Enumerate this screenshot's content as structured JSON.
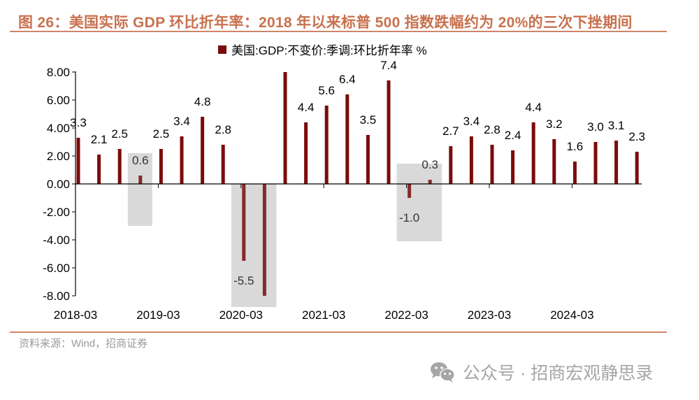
{
  "header": {
    "title": "图 26：美国实际 GDP 环比折年率：2018 年以来标普 500 指数跌幅约为 20%的三次下挫期间"
  },
  "footer": {
    "source": "资料来源：Wind，招商证券",
    "watermark": "公众号 · 招商宏观静思录",
    "watermark_icon": "wechat-icon"
  },
  "colors": {
    "bar": "#7b0b0b",
    "bar_in_shade": "#862a2a",
    "shade": "#d9d9d9",
    "title": "#c8714e",
    "rule": "#d08566"
  },
  "chart_data": {
    "type": "bar",
    "title": "",
    "xlabel": "",
    "ylabel": "",
    "legend": {
      "label": "美国:GDP:不变价:季调:环比折年率 %",
      "position": "top"
    },
    "ylim": [
      -8,
      8
    ],
    "yticks": [
      "8.00",
      "6.00",
      "4.00",
      "2.00",
      "0.00",
      "-2.00",
      "-4.00",
      "-6.00",
      "-8.00"
    ],
    "ytick_values": [
      8,
      6,
      4,
      2,
      0,
      -2,
      -4,
      -6,
      -8
    ],
    "grid": false,
    "categories": [
      "2018Q1",
      "2018Q2",
      "2018Q3",
      "2018Q4",
      "2019Q1",
      "2019Q2",
      "2019Q3",
      "2019Q4",
      "2020Q1",
      "2020Q2",
      "2020Q3",
      "2020Q4",
      "2021Q1",
      "2021Q2",
      "2021Q3",
      "2021Q4",
      "2022Q1",
      "2022Q2",
      "2022Q3",
      "2022Q4",
      "2023Q1",
      "2023Q2",
      "2023Q3",
      "2023Q4",
      "2024Q1",
      "2024Q2",
      "2024Q3",
      "2024Q4"
    ],
    "xtick_labels": [
      {
        "label": "2018-03",
        "index": 0
      },
      {
        "label": "2019-03",
        "index": 4
      },
      {
        "label": "2020-03",
        "index": 8
      },
      {
        "label": "2021-03",
        "index": 12
      },
      {
        "label": "2022-03",
        "index": 16
      },
      {
        "label": "2023-03",
        "index": 20
      },
      {
        "label": "2024-03",
        "index": 24
      }
    ],
    "series": [
      {
        "name": "美国:GDP:不变价:季调:环比折年率",
        "values": [
          3.3,
          2.1,
          2.5,
          0.6,
          2.5,
          3.4,
          4.8,
          2.8,
          -5.5,
          -8.0,
          8.0,
          4.4,
          5.6,
          6.4,
          3.5,
          7.4,
          -1.0,
          0.3,
          2.7,
          3.4,
          2.8,
          2.4,
          4.4,
          3.2,
          1.6,
          3.0,
          3.1,
          2.3
        ],
        "labels": [
          "3.3",
          "2.1",
          "2.5",
          "0.6",
          "2.5",
          "3.4",
          "4.8",
          "2.8",
          "-5.5",
          "",
          "",
          "4.4",
          "5.6",
          "6.4",
          "3.5",
          "7.4",
          "-1.0",
          "0.3",
          "2.7",
          "3.4",
          "2.8",
          "2.4",
          "4.4",
          "3.2",
          "1.6",
          "3.0",
          "3.1",
          "2.3"
        ],
        "note": "2020Q2 and 2020Q3 bars are clipped at the axis limits (-8 / 8)"
      }
    ],
    "shaded_periods": [
      {
        "from_index": 3,
        "to_index": 3,
        "y_top": 2.2,
        "y_bottom": -3.0
      },
      {
        "from_index": 8,
        "to_index": 9,
        "y_top": 0,
        "y_bottom": -8.8
      },
      {
        "from_index": 16,
        "to_index": 17,
        "y_top": 1.45,
        "y_bottom": -4.1
      }
    ]
  }
}
